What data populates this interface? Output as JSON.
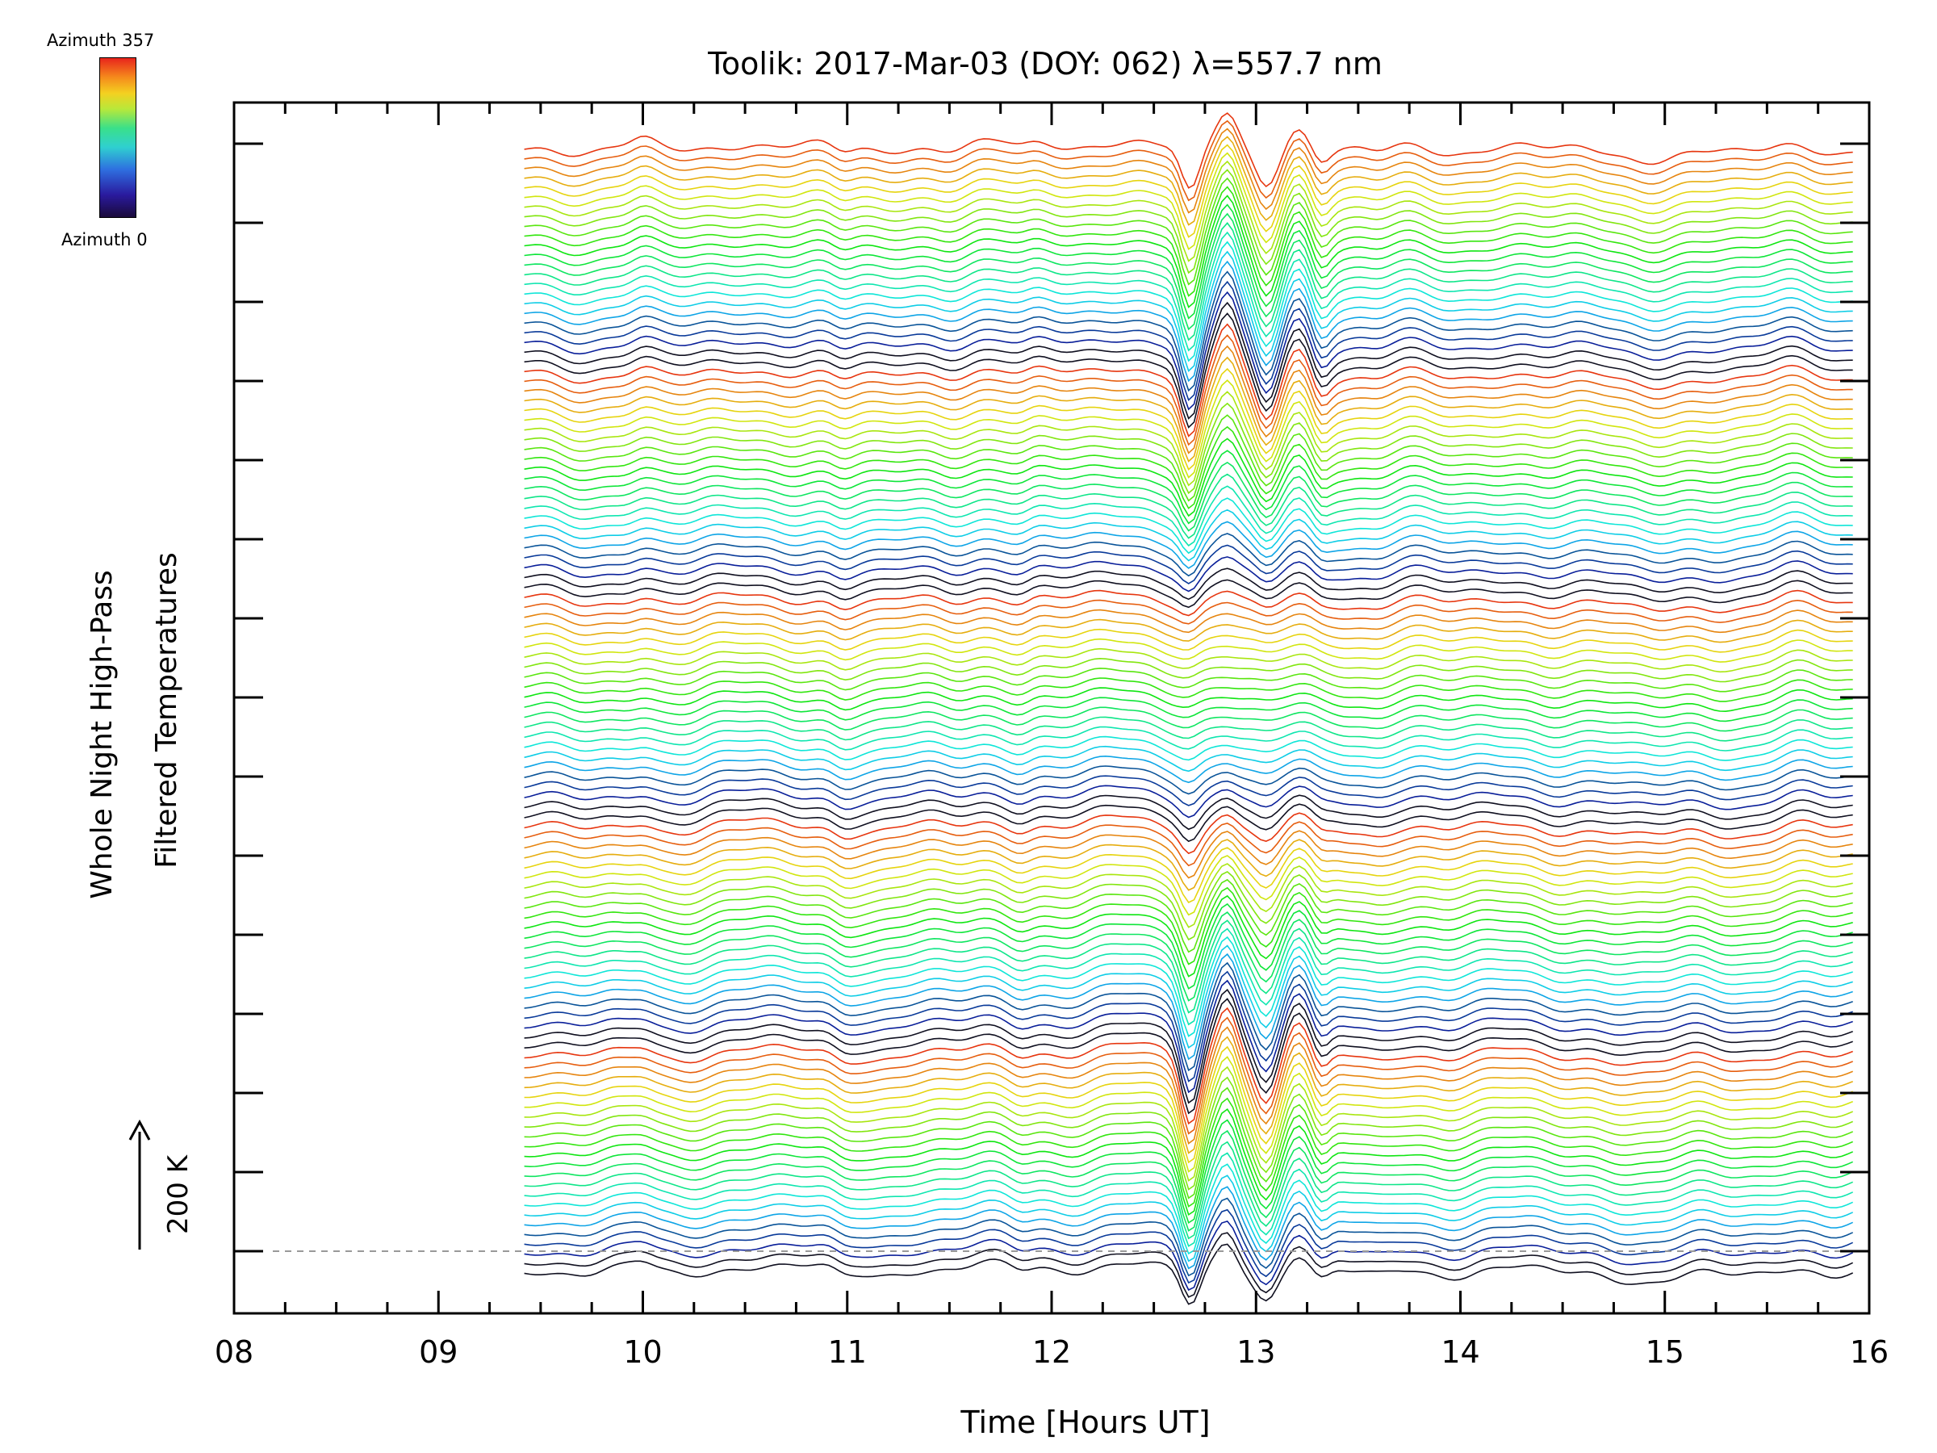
{
  "chart_data": {
    "type": "line",
    "title": "Toolik: 2017-Mar-03 (DOY: 062) λ=557.7 nm",
    "xlabel": "Time [Hours UT]",
    "ylabel_lines": [
      "Whole Night High-Pass",
      "Filtered Temperatures"
    ],
    "scale_label": "200 K",
    "xlim": [
      8,
      16
    ],
    "x_ticks": [
      "08",
      "09",
      "10",
      "11",
      "12",
      "13",
      "14",
      "15",
      "16"
    ],
    "y_major_ticks": 15,
    "data_start_hour": 9.42,
    "data_end_hour": 15.92,
    "n_series": 115,
    "series_note": "Stacked high-pass filtered temperature traces, one per azimuth sector, color-coded by azimuth; the azimuth color cycles from 0 to 357 roughly every 23 traces, with the lowest trace black and upward traces blue, cyan, green, yellow, orange.",
    "baseline_line": "dashed grey zero line",
    "colorbar": {
      "top_label": "Azimuth  357",
      "bottom_label": "Azimuth  0",
      "min": 0,
      "max": 357
    },
    "wave_signature": {
      "envelope_hours": [
        12.55,
        13.45
      ],
      "troughs_hours": [
        12.68,
        13.05
      ],
      "peak_hours": [
        12.85,
        13.22
      ]
    }
  }
}
